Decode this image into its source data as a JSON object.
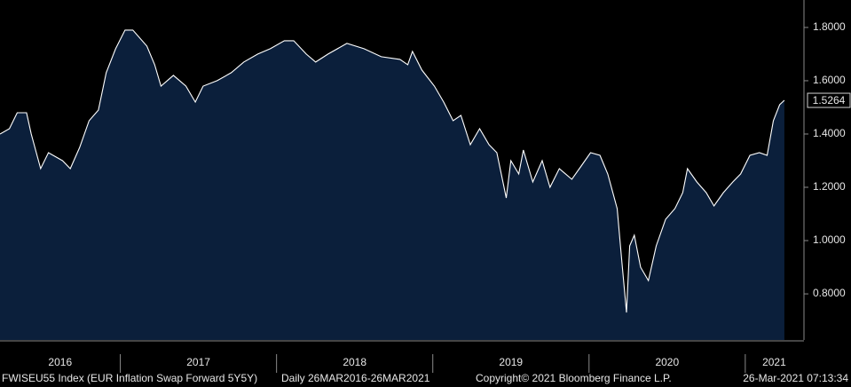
{
  "chart_data": {
    "type": "area",
    "title": "FWISEU55 Index (EUR Inflation Swap Forward 5Y5Y)",
    "subtitle": "Daily 26MAR2016-26MAR2021",
    "copyright": "Copyright© 2021 Bloomberg Finance L.P.",
    "timestamp": "26-Mar-2021 07:13:34",
    "line_color": "#ffffff",
    "fill_color": "#0b1f3b",
    "x": [
      2016.23,
      2016.29,
      2016.34,
      2016.4,
      2016.43,
      2016.49,
      2016.54,
      2016.63,
      2016.68,
      2016.74,
      2016.8,
      2016.86,
      2016.91,
      2016.97,
      2017.03,
      2017.08,
      2017.17,
      2017.22,
      2017.26,
      2017.34,
      2017.42,
      2017.48,
      2017.53,
      2017.62,
      2017.71,
      2017.79,
      2017.88,
      2017.96,
      2018.05,
      2018.11,
      2018.19,
      2018.25,
      2018.33,
      2018.45,
      2018.56,
      2018.67,
      2018.79,
      2018.84,
      2018.87,
      2018.93,
      2019.01,
      2019.07,
      2019.13,
      2019.18,
      2019.24,
      2019.3,
      2019.36,
      2019.41,
      2019.47,
      2019.5,
      2019.55,
      2019.58,
      2019.64,
      2019.7,
      2019.75,
      2019.81,
      2019.89,
      2019.95,
      2020.01,
      2020.07,
      2020.12,
      2020.18,
      2020.21,
      2020.24,
      2020.26,
      2020.29,
      2020.33,
      2020.38,
      2020.43,
      2020.49,
      2020.55,
      2020.6,
      2020.63,
      2020.69,
      2020.75,
      2020.8,
      2020.86,
      2020.92,
      2020.97,
      2021.03,
      2021.09,
      2021.14,
      2021.18,
      2021.22,
      2021.25
    ],
    "values": [
      1.4,
      1.42,
      1.48,
      1.48,
      1.4,
      1.27,
      1.33,
      1.3,
      1.27,
      1.35,
      1.45,
      1.49,
      1.63,
      1.72,
      1.79,
      1.79,
      1.73,
      1.66,
      1.58,
      1.62,
      1.58,
      1.52,
      1.58,
      1.6,
      1.63,
      1.67,
      1.7,
      1.72,
      1.75,
      1.75,
      1.7,
      1.67,
      1.7,
      1.74,
      1.72,
      1.69,
      1.68,
      1.66,
      1.71,
      1.64,
      1.58,
      1.52,
      1.45,
      1.47,
      1.36,
      1.42,
      1.36,
      1.33,
      1.16,
      1.3,
      1.25,
      1.34,
      1.22,
      1.3,
      1.2,
      1.27,
      1.23,
      1.28,
      1.33,
      1.32,
      1.25,
      1.12,
      0.92,
      0.73,
      0.98,
      1.02,
      0.9,
      0.85,
      0.98,
      1.08,
      1.12,
      1.18,
      1.27,
      1.22,
      1.18,
      1.13,
      1.18,
      1.22,
      1.25,
      1.32,
      1.33,
      1.32,
      1.45,
      1.51,
      1.5264
    ],
    "xlim": [
      2016.23,
      2021.37
    ],
    "xticks": [
      2017,
      2018,
      2019,
      2020,
      2021
    ],
    "year_labels": [
      "2016",
      "2017",
      "2018",
      "2019",
      "2020",
      "2021"
    ],
    "ylim": [
      0.627,
      1.903
    ],
    "yticks": [
      {
        "value": 0.8,
        "label": "0.8000"
      },
      {
        "value": 1.0,
        "label": "1.0000"
      },
      {
        "value": 1.2,
        "label": "1.2000"
      },
      {
        "value": 1.4,
        "label": "1.4000"
      },
      {
        "value": 1.6,
        "label": "1.6000"
      },
      {
        "value": 1.8,
        "label": "1.8000"
      }
    ]
  }
}
